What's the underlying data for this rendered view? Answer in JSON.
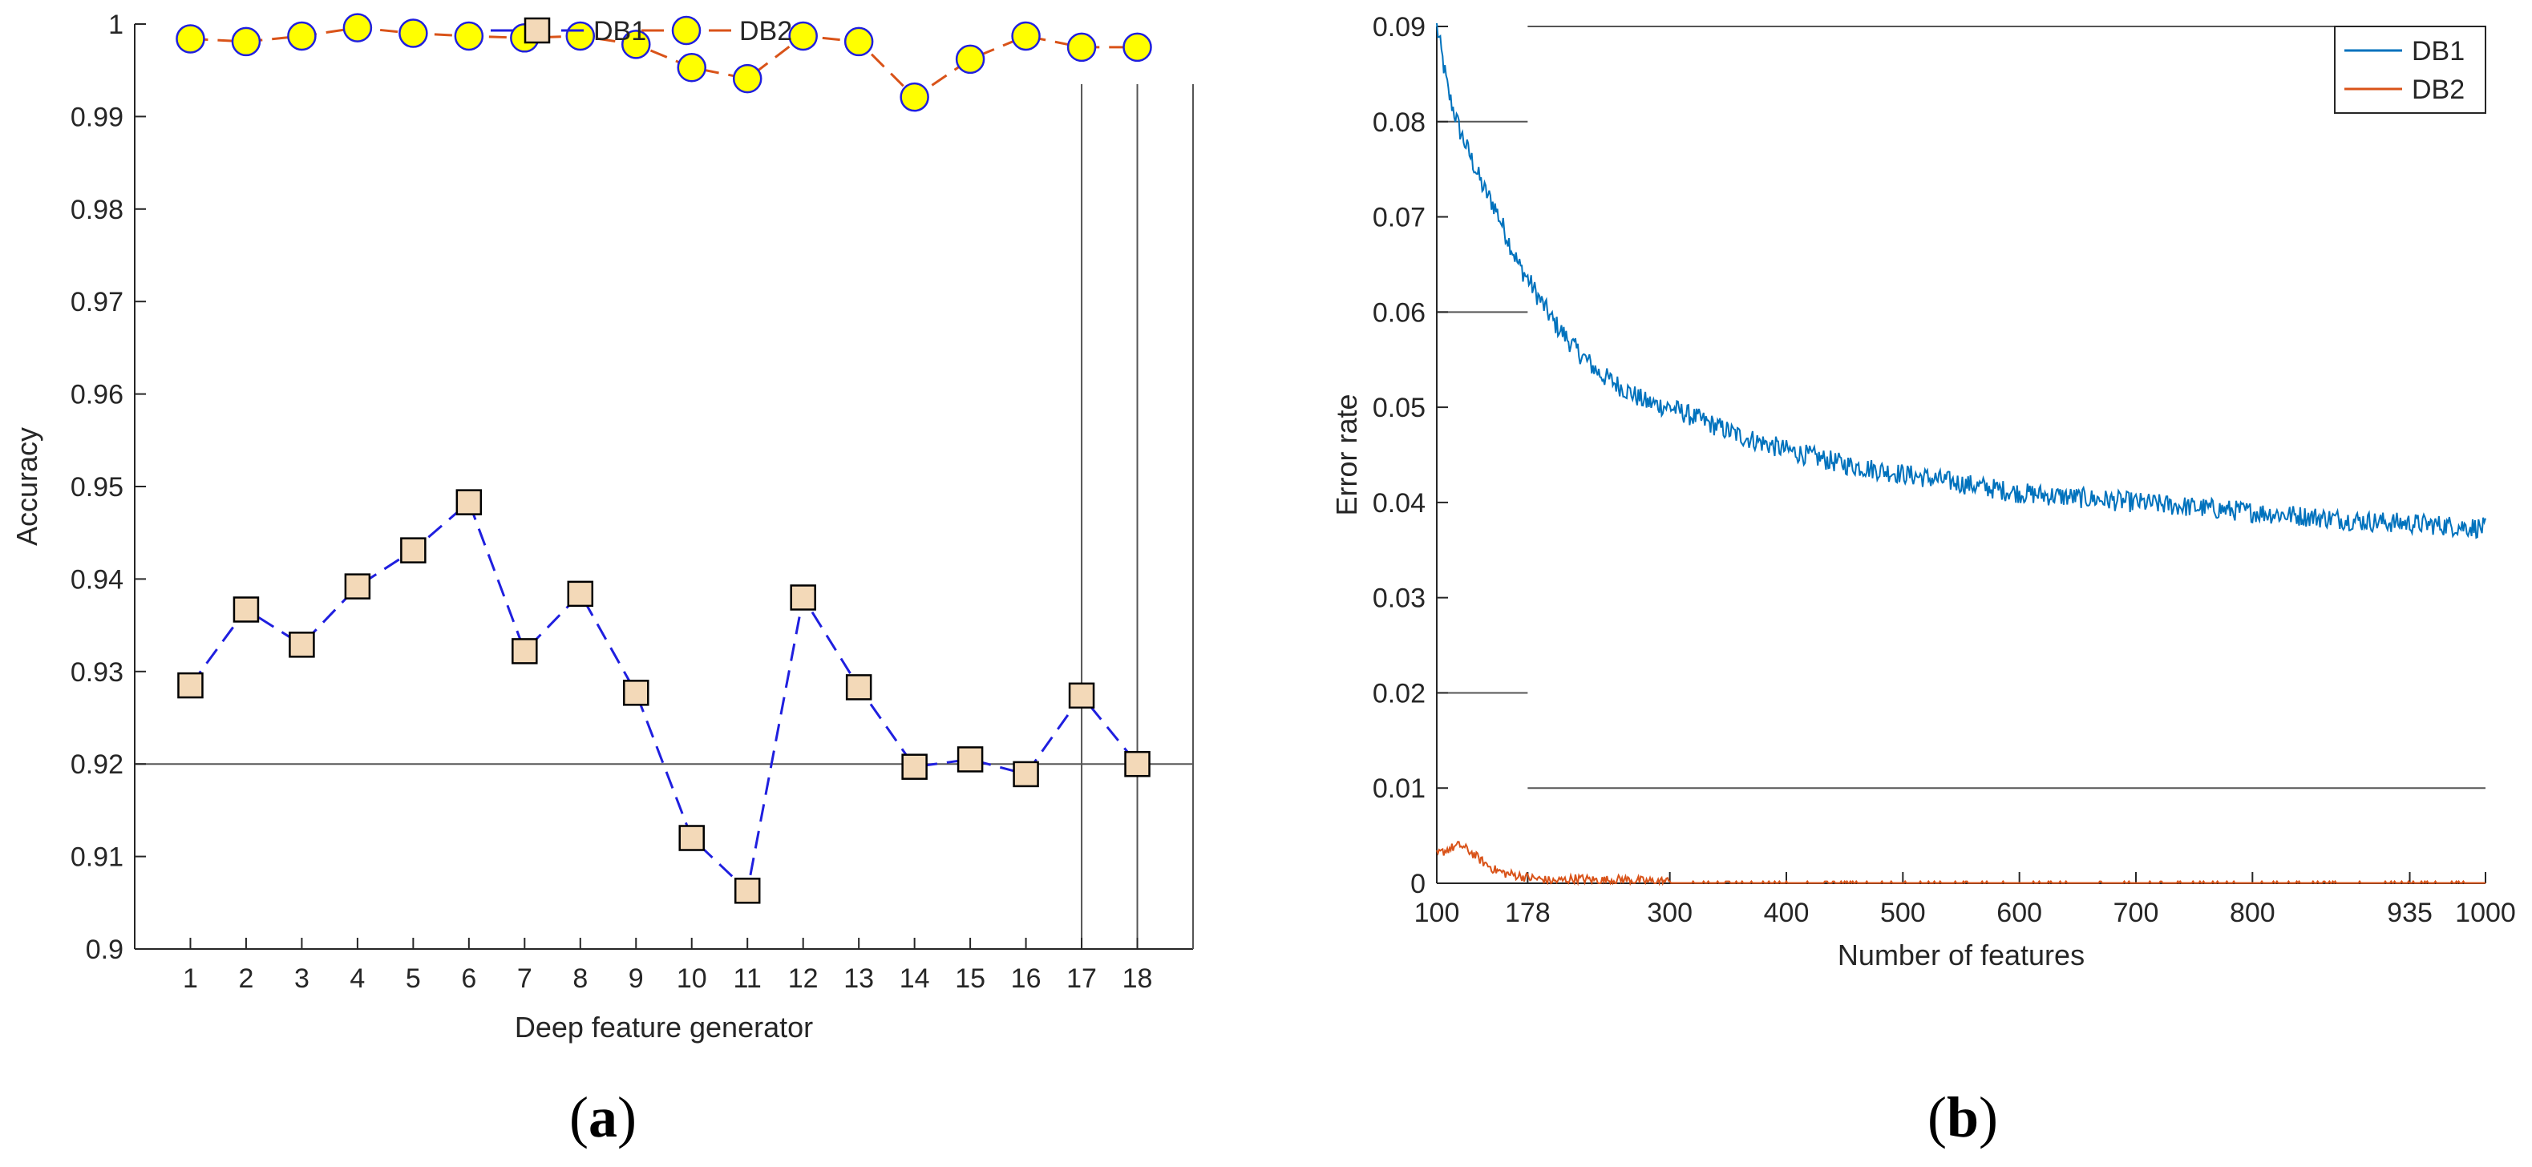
{
  "chart_data": [
    {
      "type": "line",
      "panel": "(a)",
      "panel_letter": "a",
      "title": "",
      "xlabel": "Deep feature generator",
      "ylabel": "Accuracy",
      "x": [
        1,
        2,
        3,
        4,
        5,
        6,
        7,
        8,
        9,
        10,
        11,
        12,
        13,
        14,
        15,
        16,
        17,
        18
      ],
      "xlim": [
        0,
        19
      ],
      "ylim": [
        0.9,
        1.0
      ],
      "xtick_labels": [
        "1",
        "2",
        "3",
        "4",
        "5",
        "6",
        "7",
        "8",
        "9",
        "10",
        "11",
        "12",
        "13",
        "14",
        "15",
        "16",
        "17",
        "18"
      ],
      "ytick_values": [
        0.9,
        0.91,
        0.92,
        0.93,
        0.94,
        0.95,
        0.96,
        0.97,
        0.98,
        0.99,
        1.0
      ],
      "ytick_labels": [
        "0.9",
        "0.91",
        "0.92",
        "0.93",
        "0.94",
        "0.95",
        "0.96",
        "0.97",
        "0.98",
        "0.99",
        "1"
      ],
      "legend_position": "top-center",
      "series": [
        {
          "name": "DB1",
          "line_color": "#1f1fdf",
          "marker": "square",
          "marker_fill": "#f3d9b8",
          "marker_edge": "#000000",
          "values": [
            0.9285,
            0.9367,
            0.9329,
            0.9392,
            0.9431,
            0.9483,
            0.9322,
            0.9384,
            0.9277,
            0.912,
            0.9063,
            0.938,
            0.9283,
            0.9197,
            0.9205,
            0.9189,
            0.9274,
            0.92
          ]
        },
        {
          "name": "DB2",
          "line_color": "#d95319",
          "marker": "circle",
          "marker_fill": "#ffff00",
          "marker_edge": "#1f1fdf",
          "values": [
            0.9984,
            0.9981,
            0.9987,
            0.9996,
            0.999,
            0.9987,
            0.9985,
            0.9987,
            0.9978,
            0.9953,
            0.9941,
            0.9987,
            0.9981,
            0.9921,
            0.9962,
            0.9987,
            0.9975,
            0.9975
          ]
        }
      ],
      "reference_lines": [
        {
          "axis": "y",
          "value": 0.92,
          "color": "#555555"
        },
        {
          "axis": "x",
          "value": 17,
          "color": "#555555"
        },
        {
          "axis": "x",
          "value": 18,
          "color": "#555555"
        }
      ]
    },
    {
      "type": "line",
      "panel": "(b)",
      "panel_letter": "b",
      "title": "",
      "xlabel": "Number of features",
      "ylabel": "Error rate",
      "xlim": [
        100,
        1000
      ],
      "ylim": [
        0,
        0.09
      ],
      "xtick_values": [
        100,
        178,
        300,
        400,
        500,
        600,
        700,
        800,
        935,
        1000
      ],
      "xtick_labels": [
        "100",
        "178",
        "300",
        "400",
        "500",
        "600",
        "700",
        "800",
        "935",
        "1000"
      ],
      "ytick_values": [
        0,
        0.01,
        0.02,
        0.03,
        0.04,
        0.05,
        0.06,
        0.07,
        0.08,
        0.09
      ],
      "ytick_labels": [
        "0",
        "0.01",
        "0.02",
        "0.03",
        "0.04",
        "0.05",
        "0.06",
        "0.07",
        "0.08",
        "0.09"
      ],
      "legend_position": "top-right",
      "series": [
        {
          "name": "DB1",
          "color": "#0072bd",
          "x": [
            100,
            110,
            120,
            130,
            140,
            150,
            160,
            170,
            178,
            190,
            200,
            220,
            240,
            260,
            280,
            300,
            330,
            360,
            400,
            450,
            500,
            550,
            600,
            650,
            700,
            750,
            800,
            850,
            900,
            935,
            950,
            1000
          ],
          "values": [
            0.09,
            0.083,
            0.079,
            0.076,
            0.073,
            0.071,
            0.068,
            0.065,
            0.0635,
            0.061,
            0.059,
            0.056,
            0.0535,
            0.052,
            0.0505,
            0.05,
            0.0485,
            0.047,
            0.0455,
            0.044,
            0.043,
            0.042,
            0.041,
            0.0405,
            0.04,
            0.0395,
            0.039,
            0.0385,
            0.038,
            0.0378,
            0.0377,
            0.0373
          ]
        },
        {
          "name": "DB2",
          "color": "#d95319",
          "x": [
            100,
            110,
            120,
            130,
            140,
            150,
            160,
            170,
            178,
            190,
            200,
            220,
            240,
            260,
            280,
            300,
            320,
            350,
            400,
            500,
            600,
            700,
            800,
            900,
            935,
            1000
          ],
          "values": [
            0.003,
            0.0036,
            0.004,
            0.0032,
            0.0022,
            0.0014,
            0.001,
            0.0008,
            0.0006,
            0.0004,
            0.0002,
            0.0005,
            0.0003,
            0.0004,
            0.0002,
            0.0002,
            0.0001,
            0.0001,
            0.0001,
            0.0001,
            0.0001,
            0.0001,
            0.0001,
            0.0001,
            0.0001,
            0.0001
          ]
        }
      ],
      "reference_lines": [
        {
          "axis": "y",
          "value": 0.09,
          "from_x": 178,
          "color": "#555555"
        },
        {
          "axis": "y",
          "value": 0.01,
          "from_x": 178,
          "color": "#555555"
        },
        {
          "axis": "y",
          "value": 0.08,
          "to_x": 178,
          "color": "#555555"
        },
        {
          "axis": "y",
          "value": 0.06,
          "to_x": 178,
          "color": "#555555"
        },
        {
          "axis": "y",
          "value": 0.02,
          "to_x": 178,
          "color": "#555555"
        }
      ]
    }
  ]
}
